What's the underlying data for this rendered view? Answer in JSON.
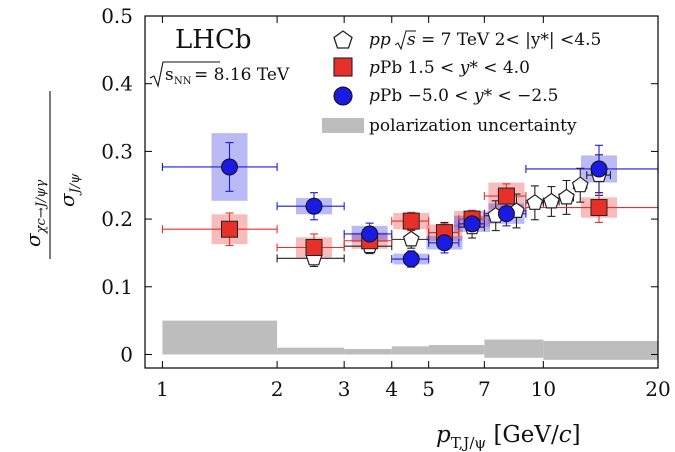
{
  "chart_data": {
    "type": "scatter",
    "experiment_label": "LHCb",
    "energy_label": "√sNN = 8.16 TeV",
    "ylabel": "σχc→J/ψγ / σJ/ψ",
    "xlabel": "pT,J/ψ [GeV/c]",
    "xscale": "log",
    "xlim": [
      0.9,
      20
    ],
    "ylim": [
      -0.02,
      0.5
    ],
    "xticks": [
      1,
      2,
      3,
      4,
      5,
      7,
      10,
      20
    ],
    "xtick_labels": [
      "1",
      "2",
      "3",
      "4",
      "5",
      "7",
      "10",
      "20"
    ],
    "yticks": [
      0,
      0.1,
      0.2,
      0.3,
      0.4,
      0.5
    ],
    "ytick_labels": [
      "0",
      "0.1",
      "0.2",
      "0.3",
      "0.4",
      "0.5"
    ],
    "legend_position": "top-right",
    "series": [
      {
        "name": "pp √s = 7 TeV 2< |y*| <4.5",
        "legend_label": "pp √s = 7 TeV 2< |y*| <4.5",
        "marker": "pentagon-open",
        "color": "#222222",
        "points": [
          {
            "x": 2.5,
            "y": 0.142,
            "xlo": 2,
            "xhi": 3,
            "yerr": 0.012
          },
          {
            "x": 3.5,
            "y": 0.16,
            "xlo": 3,
            "xhi": 4,
            "yerr": 0.011
          },
          {
            "x": 4.5,
            "y": 0.17,
            "xlo": 4,
            "xhi": 5,
            "yerr": 0.013
          },
          {
            "x": 5.5,
            "y": 0.18,
            "xlo": 5,
            "xhi": 6,
            "yerr": 0.015
          },
          {
            "x": 6.5,
            "y": 0.188,
            "xlo": 6,
            "xhi": 7,
            "yerr": 0.016
          },
          {
            "x": 7.5,
            "y": 0.205,
            "xlo": 7,
            "xhi": 8,
            "yerr": 0.022
          },
          {
            "x": 8.5,
            "y": 0.212,
            "xlo": 8,
            "xhi": 9,
            "yerr": 0.025
          },
          {
            "x": 9.5,
            "y": 0.224,
            "xlo": 9,
            "xhi": 10,
            "yerr": 0.025
          },
          {
            "x": 10.5,
            "y": 0.226,
            "xlo": 10,
            "xhi": 11,
            "yerr": 0.022
          },
          {
            "x": 11.5,
            "y": 0.232,
            "xlo": 11,
            "xhi": 12,
            "yerr": 0.025
          },
          {
            "x": 12.5,
            "y": 0.25,
            "xlo": 12,
            "xhi": 13,
            "yerr": 0.025
          },
          {
            "x": 14,
            "y": 0.265,
            "xlo": 13,
            "xhi": 15,
            "yerr": 0.03
          }
        ]
      },
      {
        "name": "pPb 1.5 < y* < 4.0",
        "legend_label": "pPb    1.5 < y* < 4.0",
        "marker": "square",
        "color": "#e8302a",
        "points": [
          {
            "x": 1.5,
            "y": 0.185,
            "xlo": 1,
            "xhi": 2,
            "yerr": 0.024,
            "syst": 0.022
          },
          {
            "x": 2.5,
            "y": 0.158,
            "xlo": 2,
            "xhi": 3,
            "yerr": 0.02,
            "syst": 0.015
          },
          {
            "x": 3.5,
            "y": 0.168,
            "xlo": 3,
            "xhi": 4,
            "yerr": 0.012,
            "syst": 0.012
          },
          {
            "x": 4.5,
            "y": 0.197,
            "xlo": 4,
            "xhi": 5,
            "yerr": 0.013,
            "syst": 0.012
          },
          {
            "x": 5.5,
            "y": 0.18,
            "xlo": 5,
            "xhi": 6,
            "yerr": 0.013,
            "syst": 0.012
          },
          {
            "x": 6.5,
            "y": 0.2,
            "xlo": 6,
            "xhi": 7,
            "yerr": 0.013,
            "syst": 0.012
          },
          {
            "x": 8,
            "y": 0.234,
            "xlo": 7,
            "xhi": 9,
            "yerr": 0.018,
            "syst": 0.02
          },
          {
            "x": 14,
            "y": 0.217,
            "xlo": 9,
            "xhi": 20,
            "yerr": 0.022,
            "syst": 0.015
          }
        ]
      },
      {
        "name": "pPb −5.0 < y* < −2.5",
        "legend_label": "pPb   −5.0 < y* < −2.5",
        "marker": "circle",
        "color": "#1a1ae0",
        "points": [
          {
            "x": 1.5,
            "y": 0.277,
            "xlo": 1,
            "xhi": 2,
            "yerr": 0.036,
            "syst": 0.05
          },
          {
            "x": 2.5,
            "y": 0.219,
            "xlo": 2,
            "xhi": 3,
            "yerr": 0.02,
            "syst": 0.012
          },
          {
            "x": 3.5,
            "y": 0.178,
            "xlo": 3,
            "xhi": 4,
            "yerr": 0.016,
            "syst": 0.012
          },
          {
            "x": 4.5,
            "y": 0.141,
            "xlo": 4,
            "xhi": 5,
            "yerr": 0.012,
            "syst": 0.008
          },
          {
            "x": 5.5,
            "y": 0.165,
            "xlo": 5,
            "xhi": 6,
            "yerr": 0.015,
            "syst": 0.01
          },
          {
            "x": 6.5,
            "y": 0.193,
            "xlo": 6,
            "xhi": 7,
            "yerr": 0.014,
            "syst": 0.012
          },
          {
            "x": 8,
            "y": 0.208,
            "xlo": 7,
            "xhi": 9,
            "yerr": 0.018,
            "syst": 0.015
          },
          {
            "x": 14,
            "y": 0.274,
            "xlo": 9,
            "xhi": 20,
            "yerr": 0.035,
            "syst": 0.02
          }
        ]
      },
      {
        "name": "polarization uncertainty",
        "legend_label": "polarization uncertainty",
        "marker": "band",
        "color": "#bdbdbd",
        "bins": [
          {
            "xlo": 1,
            "xhi": 2,
            "ylo": 0,
            "yhi": 0.05
          },
          {
            "xlo": 2,
            "xhi": 3,
            "ylo": 0,
            "yhi": 0.01
          },
          {
            "xlo": 3,
            "xhi": 4,
            "ylo": 0,
            "yhi": 0.008
          },
          {
            "xlo": 4,
            "xhi": 5,
            "ylo": 0,
            "yhi": 0.012
          },
          {
            "xlo": 5,
            "xhi": 7,
            "ylo": 0,
            "yhi": 0.014
          },
          {
            "xlo": 7,
            "xhi": 10,
            "ylo": -0.005,
            "yhi": 0.022
          },
          {
            "xlo": 10,
            "xhi": 20,
            "ylo": -0.008,
            "yhi": 0.02
          }
        ]
      }
    ]
  }
}
